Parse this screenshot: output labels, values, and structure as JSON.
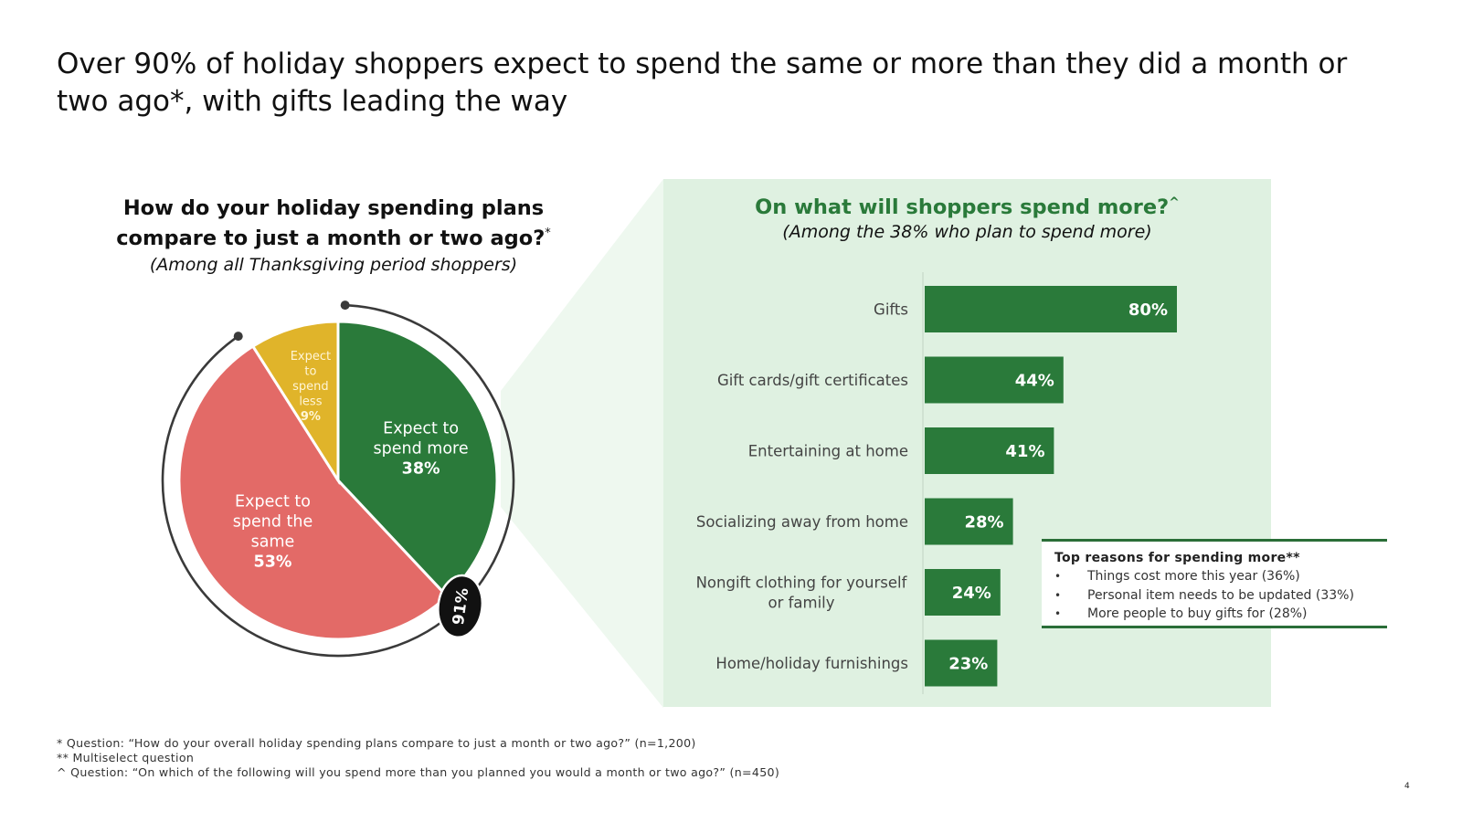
{
  "title": "Over 90% of holiday shoppers expect to spend the same or more than they did a month or two ago*, with gifts leading the way",
  "pie_chart": {
    "heading_line1": "How do your holiday spending plans",
    "heading_line2": "compare to just a month or two ago?",
    "heading_marker": "*",
    "subtitle": "(Among all Thanksgiving period shoppers)",
    "badge": "91%"
  },
  "bar_chart": {
    "heading": "On what will shoppers spend more?",
    "heading_marker": "^",
    "subtitle": "(Among the 38% who plan to spend more)"
  },
  "reasons": {
    "title": "Top reasons for spending more**",
    "items": [
      "Things cost more this year (36%)",
      "Personal item needs to be updated (33%)",
      "More people to buy gifts for (28%)"
    ]
  },
  "footnotes": [
    "* Question: “How do your overall holiday spending plans compare to just a month or two ago?” (n=1,200)",
    "** Multiselect question",
    "^ Question: “On which of the following will you spend more than you planned you would a month or two ago?” (n=450)"
  ],
  "page_number": "4",
  "colors": {
    "more": "#2a7a3a",
    "same": "#e36a67",
    "less": "#e0b42a",
    "panel": "#dff1e1",
    "bar": "#2a7a3a",
    "heading_green": "#2a7a3a"
  },
  "chart_data": [
    {
      "type": "pie",
      "title": "How do your holiday spending plans compare to just a month or two ago?*",
      "subtitle": "(Among all Thanksgiving period shoppers)",
      "slices": [
        {
          "label_lines": [
            "Expect to",
            "spend more"
          ],
          "value": 38,
          "value_label": "38%",
          "color": "#2a7a3a"
        },
        {
          "label_lines": [
            "Expect to",
            "spend the",
            "same"
          ],
          "value": 53,
          "value_label": "53%",
          "color": "#e36a67"
        },
        {
          "label_lines": [
            "Expect",
            "to",
            "spend",
            "less"
          ],
          "value": 9,
          "value_label": "9%",
          "color": "#e0b42a"
        }
      ],
      "annotation": {
        "label": "91%",
        "covers": [
          "Expect to spend more",
          "Expect to spend the same"
        ]
      }
    },
    {
      "type": "bar",
      "orientation": "horizontal",
      "title": "On what will shoppers spend more?^",
      "subtitle": "(Among the 38% who plan to spend more)",
      "categories": [
        [
          "Gifts"
        ],
        [
          "Gift cards/gift certificates"
        ],
        [
          "Entertaining at home"
        ],
        [
          "Socializing away from home"
        ],
        [
          "Nongift clothing for yourself",
          "or family"
        ],
        [
          "Home/holiday furnishings"
        ]
      ],
      "values": [
        80,
        44,
        41,
        28,
        24,
        23
      ],
      "value_labels": [
        "80%",
        "44%",
        "41%",
        "28%",
        "24%",
        "23%"
      ],
      "xlim": [
        0,
        100
      ],
      "grid": false
    }
  ]
}
